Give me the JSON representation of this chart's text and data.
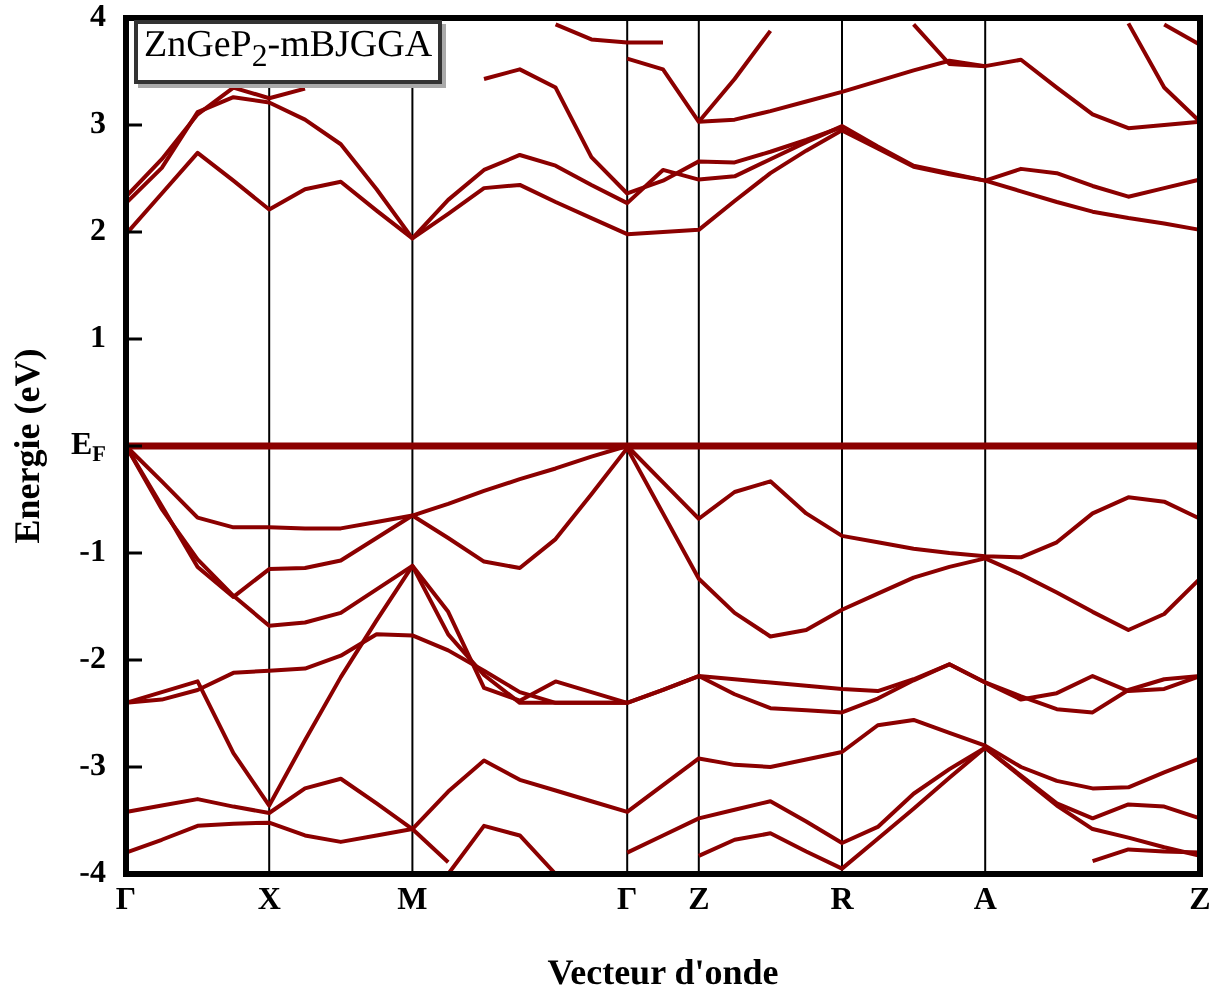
{
  "chart_data": {
    "type": "line",
    "xlabel": "Vecteur d'onde",
    "ylabel": "Energie (eV)",
    "annotations": [
      "ZnGeP$_{2}$-mBJGGA"
    ],
    "categories": [
      "Γ",
      null,
      null,
      null,
      "X",
      null,
      null,
      null,
      "M",
      null,
      null,
      null,
      null,
      null,
      "Γ",
      null,
      "Z",
      null,
      null,
      null,
      "R",
      null,
      null,
      null,
      "A",
      null,
      null,
      null,
      null,
      null,
      "Z"
    ],
    "ylim": [
      -4,
      4
    ],
    "yticks": [
      -4,
      -3,
      -2,
      -1,
      {
        "value": 0,
        "label": "E$_{F}$"
      },
      1,
      2,
      3,
      4
    ],
    "grid": "x",
    "legend": false,
    "marker": "none",
    "line_style": "solid",
    "ref_lines": [
      {
        "axis": "y",
        "value": 0,
        "color": "#8b0000"
      }
    ],
    "series": [
      {
        "color": "#8b0000",
        "values": [
          1.98,
          2.36,
          2.74,
          2.48,
          2.21,
          2.4,
          2.47,
          2.2,
          1.94,
          2.17,
          2.41,
          2.44,
          2.28,
          2.13,
          1.98,
          2.0,
          2.02,
          2.29,
          2.55,
          2.76,
          2.95,
          2.78,
          2.61,
          2.54,
          2.48,
          2.38,
          2.28,
          2.19,
          2.13,
          2.08,
          2.02
        ]
      },
      {
        "color": "#8b0000",
        "values": [
          2.27,
          2.6,
          3.12,
          3.26,
          3.21,
          3.05,
          2.82,
          2.4,
          1.94,
          2.3,
          2.58,
          2.72,
          2.62,
          2.44,
          2.27,
          2.58,
          2.49,
          2.52,
          2.68,
          2.84,
          2.99,
          2.8,
          2.62,
          2.55,
          2.48,
          2.59,
          2.55,
          2.43,
          2.33,
          2.41,
          2.49
        ]
      },
      {
        "color": "#8b0000",
        "values": [
          2.33,
          2.68,
          3.1,
          3.35,
          3.25,
          3.34,
          null,
          null,
          null,
          null,
          null,
          null,
          null,
          null,
          null,
          null,
          null,
          null,
          null,
          null,
          null,
          null,
          null,
          null,
          null,
          null,
          null,
          null,
          null,
          null,
          null
        ]
      },
      {
        "color": "#8b0000",
        "values": [
          null,
          null,
          null,
          null,
          null,
          null,
          null,
          null,
          null,
          null,
          3.43,
          3.52,
          3.35,
          2.7,
          2.36,
          2.48,
          2.66,
          2.65,
          2.75,
          2.86,
          2.98,
          null,
          null,
          null,
          null,
          null,
          null,
          null,
          null,
          null,
          null
        ]
      },
      {
        "color": "#8b0000",
        "values": [
          null,
          null,
          null,
          null,
          null,
          null,
          null,
          null,
          null,
          null,
          null,
          null,
          null,
          null,
          3.62,
          3.52,
          3.03,
          3.05,
          3.13,
          3.22,
          3.31,
          3.41,
          3.51,
          3.6,
          3.55,
          3.61,
          3.35,
          3.1,
          2.97,
          3.0,
          3.03
        ]
      },
      {
        "color": "#8b0000",
        "values": [
          null,
          null,
          null,
          null,
          null,
          null,
          null,
          null,
          null,
          null,
          null,
          null,
          null,
          null,
          null,
          null,
          3.03,
          3.43,
          3.88,
          null,
          null,
          null,
          null,
          null,
          null,
          null,
          null,
          null,
          null,
          null,
          null
        ]
      },
      {
        "color": "#8b0000",
        "values": [
          null,
          null,
          null,
          null,
          null,
          null,
          null,
          null,
          null,
          null,
          null,
          null,
          3.94,
          3.8,
          3.77,
          3.77,
          null,
          null,
          null,
          null,
          null,
          null,
          null,
          null,
          null,
          null,
          null,
          null,
          null,
          null,
          null
        ]
      },
      {
        "color": "#8b0000",
        "values": [
          null,
          null,
          null,
          null,
          null,
          null,
          null,
          null,
          null,
          null,
          null,
          null,
          null,
          null,
          null,
          null,
          null,
          null,
          null,
          null,
          null,
          null,
          3.94,
          3.57,
          3.55,
          null,
          null,
          null,
          null,
          null,
          null
        ]
      },
      {
        "color": "#8b0000",
        "values": [
          null,
          null,
          null,
          null,
          null,
          null,
          null,
          null,
          null,
          null,
          null,
          null,
          null,
          null,
          null,
          null,
          null,
          null,
          null,
          null,
          null,
          null,
          null,
          null,
          null,
          null,
          null,
          null,
          3.95,
          3.35,
          3.03
        ]
      },
      {
        "color": "#8b0000",
        "values": [
          null,
          null,
          null,
          null,
          null,
          null,
          null,
          null,
          null,
          null,
          null,
          null,
          null,
          null,
          null,
          null,
          null,
          null,
          null,
          null,
          null,
          null,
          null,
          null,
          null,
          null,
          null,
          null,
          null,
          3.94,
          3.75
        ]
      },
      {
        "color": "#8b0000",
        "values": [
          0,
          -0.33,
          -0.67,
          -0.76,
          -0.76,
          -0.77,
          -0.77,
          -0.71,
          -0.65,
          -0.54,
          -0.42,
          -0.31,
          -0.21,
          -0.1,
          0,
          -0.34,
          -0.68,
          -0.43,
          -0.33,
          -0.63,
          -0.84,
          -0.9,
          -0.96,
          -1.0,
          -1.03,
          -1.04,
          -0.9,
          -0.63,
          -0.48,
          -0.52,
          -0.68
        ]
      },
      {
        "color": "#8b0000",
        "values": [
          0,
          -0.56,
          -1.13,
          -1.41,
          -1.15,
          -1.14,
          -1.07,
          -0.86,
          -0.65,
          -0.86,
          -1.08,
          -1.14,
          -0.87,
          -0.45,
          -0.02,
          -0.63,
          -1.24,
          -1.56,
          -1.78,
          -1.72,
          -1.53,
          -1.38,
          -1.23,
          -1.13,
          -1.05,
          -1.2,
          -1.37,
          -1.55,
          -1.72,
          -1.57,
          -1.24
        ]
      },
      {
        "color": "#8b0000",
        "values": [
          0,
          -0.59,
          -1.06,
          -1.4,
          -1.68,
          -1.65,
          -1.56,
          -1.34,
          -1.12,
          -1.55,
          -2.26,
          -2.38,
          -2.2,
          -2.3,
          -2.4,
          -2.28,
          -2.15,
          -2.18,
          -2.21,
          -2.24,
          -2.27,
          -2.29,
          -2.18,
          -2.04,
          -2.21,
          -2.34,
          -2.46,
          -2.49,
          -2.28,
          -2.18,
          -2.15
        ]
      },
      {
        "color": "#8b0000",
        "values": [
          -2.4,
          -2.3,
          -2.2,
          -2.87,
          -3.36,
          -2.75,
          -2.16,
          -1.63,
          -1.12,
          -1.76,
          -2.14,
          -2.4,
          -2.4,
          -2.4,
          -2.4,
          -2.28,
          -2.15,
          -2.32,
          -2.45,
          -2.47,
          -2.49,
          -2.36,
          -2.19,
          -2.04,
          -2.21,
          -2.37,
          -2.31,
          -2.15,
          -2.29,
          -2.27,
          -2.15
        ]
      },
      {
        "color": "#8b0000",
        "values": [
          -2.4,
          -2.37,
          -2.28,
          -2.12,
          -2.1,
          -2.08,
          -1.96,
          -1.76,
          -1.77,
          -1.91,
          -2.1,
          -2.3,
          -2.4,
          -2.4,
          -2.4,
          null,
          null,
          null,
          null,
          null,
          null,
          null,
          null,
          null,
          null,
          null,
          null,
          null,
          null,
          null,
          null
        ]
      },
      {
        "color": "#8b0000",
        "values": [
          -3.42,
          -3.36,
          -3.3,
          -3.37,
          -3.43,
          -3.2,
          -3.11,
          -3.34,
          -3.58,
          -3.23,
          -2.94,
          -3.12,
          -3.22,
          -3.32,
          -3.42,
          -3.17,
          -2.92,
          -2.98,
          -3.0,
          -2.93,
          -2.86,
          -2.61,
          -2.56,
          -2.68,
          -2.8,
          -3.0,
          -3.13,
          -3.2,
          -3.19,
          -3.05,
          -2.92
        ]
      },
      {
        "color": "#8b0000",
        "values": [
          -3.8,
          -3.68,
          -3.55,
          -3.53,
          -3.52,
          -3.64,
          -3.7,
          -3.64,
          -3.58,
          -3.89,
          null,
          null,
          null,
          null,
          null,
          null,
          null,
          null,
          null,
          null,
          null,
          null,
          null,
          null,
          null,
          null,
          null,
          null,
          null,
          null,
          null
        ]
      },
      {
        "color": "#8b0000",
        "values": [
          null,
          null,
          null,
          null,
          null,
          null,
          null,
          null,
          null,
          -4,
          -3.55,
          -3.64,
          -4,
          null,
          null,
          null,
          null,
          null,
          null,
          null,
          null,
          null,
          null,
          null,
          null,
          null,
          null,
          null,
          null,
          null,
          null
        ]
      },
      {
        "color": "#8b0000",
        "values": [
          null,
          null,
          null,
          null,
          null,
          null,
          null,
          null,
          null,
          null,
          null,
          null,
          null,
          null,
          -3.8,
          -3.64,
          -3.48,
          -3.4,
          -3.32,
          -3.51,
          -3.71,
          -3.56,
          -3.25,
          -3.02,
          -2.82,
          -3.08,
          -3.34,
          -3.48,
          -3.35,
          -3.37,
          -3.48
        ]
      },
      {
        "color": "#8b0000",
        "values": [
          null,
          null,
          null,
          null,
          null,
          null,
          null,
          null,
          null,
          null,
          null,
          null,
          null,
          null,
          null,
          null,
          -3.83,
          -3.68,
          -3.62,
          -3.79,
          -3.95,
          -3.67,
          -3.39,
          -3.1,
          -2.82,
          -3.09,
          -3.36,
          -3.58,
          -3.66,
          -3.75,
          -3.83
        ]
      },
      {
        "color": "#8b0000",
        "values": [
          null,
          null,
          null,
          null,
          null,
          null,
          null,
          null,
          null,
          null,
          null,
          null,
          null,
          null,
          null,
          null,
          null,
          null,
          null,
          null,
          null,
          null,
          null,
          null,
          null,
          null,
          null,
          -3.88,
          -3.77,
          -3.79,
          -3.8
        ]
      }
    ]
  }
}
